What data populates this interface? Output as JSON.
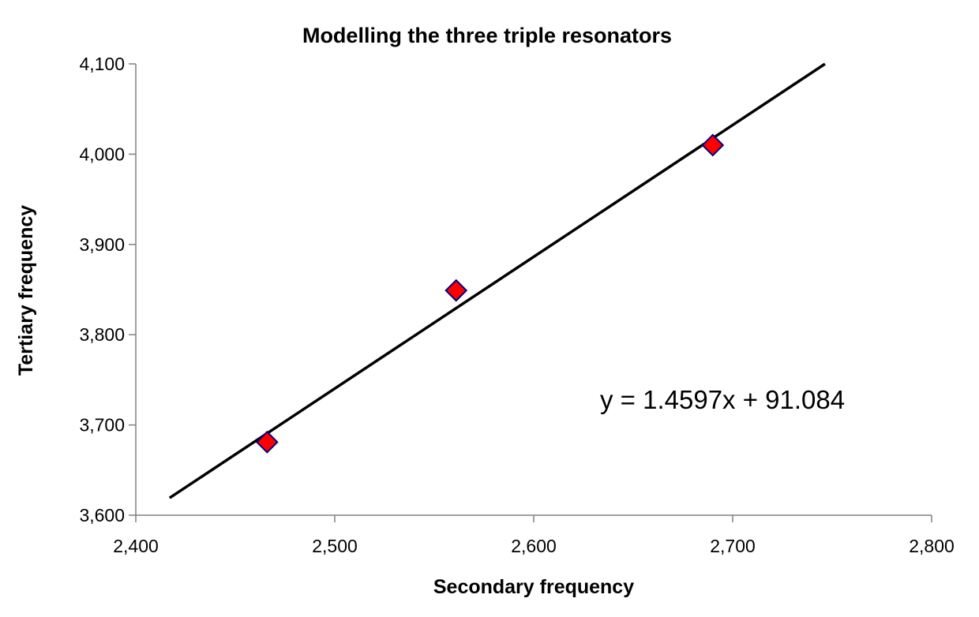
{
  "chart_data": {
    "type": "scatter",
    "title": "Modelling the three triple resonators",
    "xlabel": "Secondary frequency",
    "ylabel": "Tertiary frequency",
    "xlim": [
      2400,
      2800
    ],
    "ylim": [
      3600,
      4100
    ],
    "x_ticks": [
      "2,400",
      "2,500",
      "2,600",
      "2,700",
      "2,800"
    ],
    "y_ticks": [
      "3,600",
      "3,700",
      "3,800",
      "3,900",
      "4,000",
      "4,100"
    ],
    "grid": false,
    "legend": "none",
    "series": [
      {
        "points": [
          {
            "x": 2466,
            "y": 3681
          },
          {
            "x": 2561,
            "y": 3849
          },
          {
            "x": 2690,
            "y": 4010
          }
        ],
        "marker": "diamond",
        "color": "#ff0000",
        "edge_color": "#000080"
      }
    ],
    "trendline": {
      "type": "linear",
      "slope": 1.4597,
      "intercept": 91.084,
      "x_range": [
        2417,
        2747
      ],
      "color": "#000000"
    },
    "annotation": "y = 1.4597x + 91.084"
  }
}
